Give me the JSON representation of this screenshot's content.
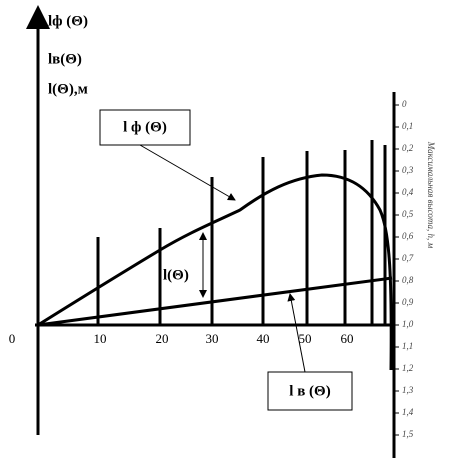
{
  "y_axis_labels": [
    "lф (Θ)",
    "lв(Θ)",
    "l(Θ),м"
  ],
  "x_ticks": [
    "0",
    "10",
    "20",
    "30",
    "40",
    "50",
    "60"
  ],
  "right_axis": {
    "ticks": [
      "0",
      "0,1",
      "0,2",
      "0,3",
      "0,4",
      "0,5",
      "0,6",
      "0,7",
      "0,8",
      "0,9",
      "1,0",
      "1,1",
      "1,2",
      "1,3",
      "1,4",
      "1,5"
    ],
    "label": "Максимальная высота, h, м"
  },
  "callouts": {
    "phi": "l ф (Θ)",
    "v": "l в (Θ)",
    "l": "l(Θ)"
  }
}
